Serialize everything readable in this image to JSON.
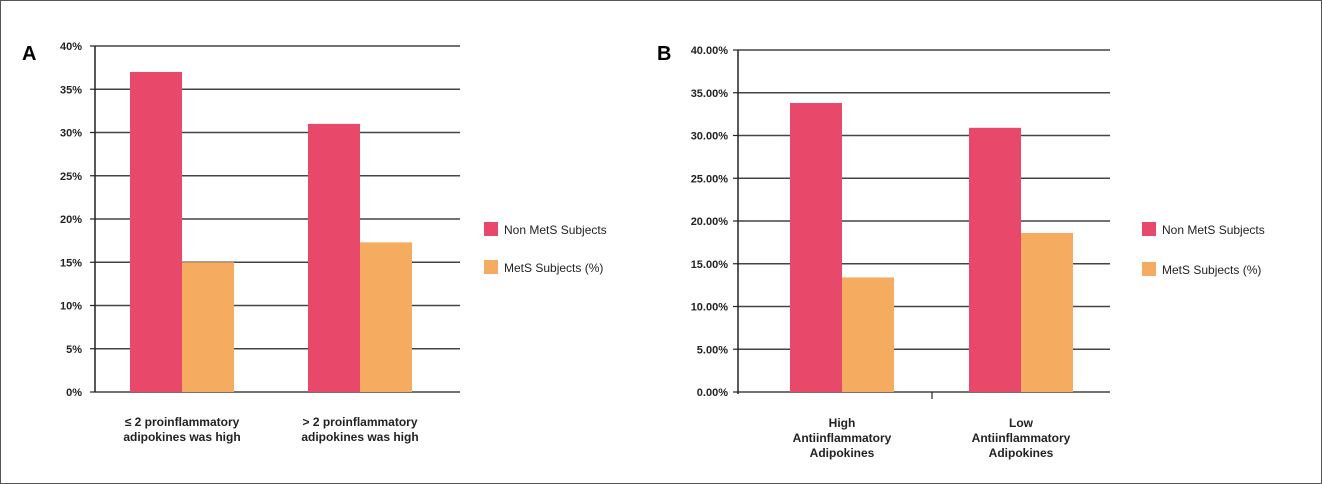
{
  "chart_data": [
    {
      "panel_label": "A",
      "type": "bar",
      "categories": [
        [
          "≤ 2 proinflammatory",
          "adipokines was high"
        ],
        [
          "> 2 proinflammatory",
          "adipokines was high"
        ]
      ],
      "series": [
        {
          "name": "Non MetS Subjects",
          "values": [
            37,
            31
          ]
        },
        {
          "name": "MetS Subjects (%)",
          "values": [
            15,
            17.3
          ]
        }
      ],
      "ylim": [
        0,
        40
      ],
      "yticks": [
        "0%",
        "5%",
        "10%",
        "15%",
        "20%",
        "25%",
        "30%",
        "35%",
        "40%"
      ],
      "grid": true,
      "legend": "right"
    },
    {
      "panel_label": "B",
      "type": "bar",
      "categories": [
        [
          "High",
          "Antiinflammatory",
          "Adipokines"
        ],
        [
          "Low",
          "Antiinflammatory",
          "Adipokines"
        ]
      ],
      "series": [
        {
          "name": "Non MetS Subjects",
          "values": [
            33.8,
            30.9
          ]
        },
        {
          "name": "MetS Subjects (%)",
          "values": [
            13.4,
            18.6
          ]
        }
      ],
      "ylim": [
        0,
        40
      ],
      "yticks": [
        "0.00%",
        "5.00%",
        "10.00%",
        "15.00%",
        "20.00%",
        "25.00%",
        "30.00%",
        "35.00%",
        "40.00%"
      ],
      "grid": true,
      "legend": "right"
    }
  ],
  "colors": {
    "non_mets": "#e8496a",
    "mets": "#f5ac61",
    "grid": "#444444"
  }
}
